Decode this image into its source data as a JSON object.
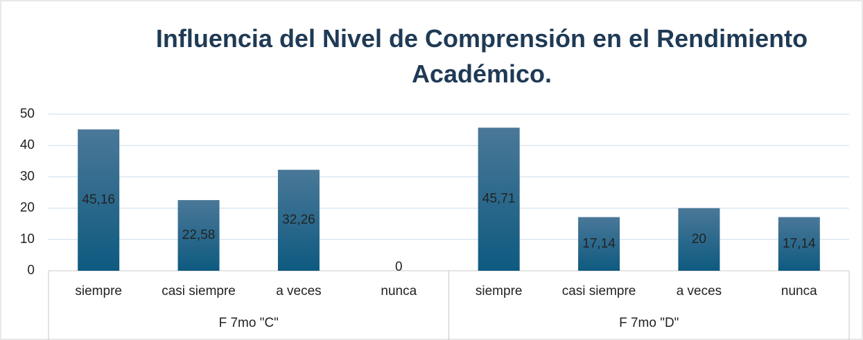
{
  "chart_data": {
    "type": "bar",
    "title": "Influencia del Nivel de Comprensión en el Rendimiento Académico.",
    "categories": [
      "siempre",
      "casi siempre",
      "a veces",
      "nunca",
      "siempre",
      "casi siempre",
      "a veces",
      "nunca"
    ],
    "groups": [
      "F 7mo \"C\"",
      "F 7mo \"D\""
    ],
    "values": [
      45.16,
      22.58,
      32.26,
      0,
      45.71,
      17.14,
      20,
      17.14
    ],
    "value_labels": [
      "45,16",
      "22,58",
      "32,26",
      "0",
      "45,71",
      "17,14",
      "20",
      "17,14"
    ],
    "color": "#0e5a80",
    "ylim": [
      0,
      50
    ],
    "yticks": [
      0,
      10,
      20,
      30,
      40,
      50
    ],
    "grid": true
  }
}
